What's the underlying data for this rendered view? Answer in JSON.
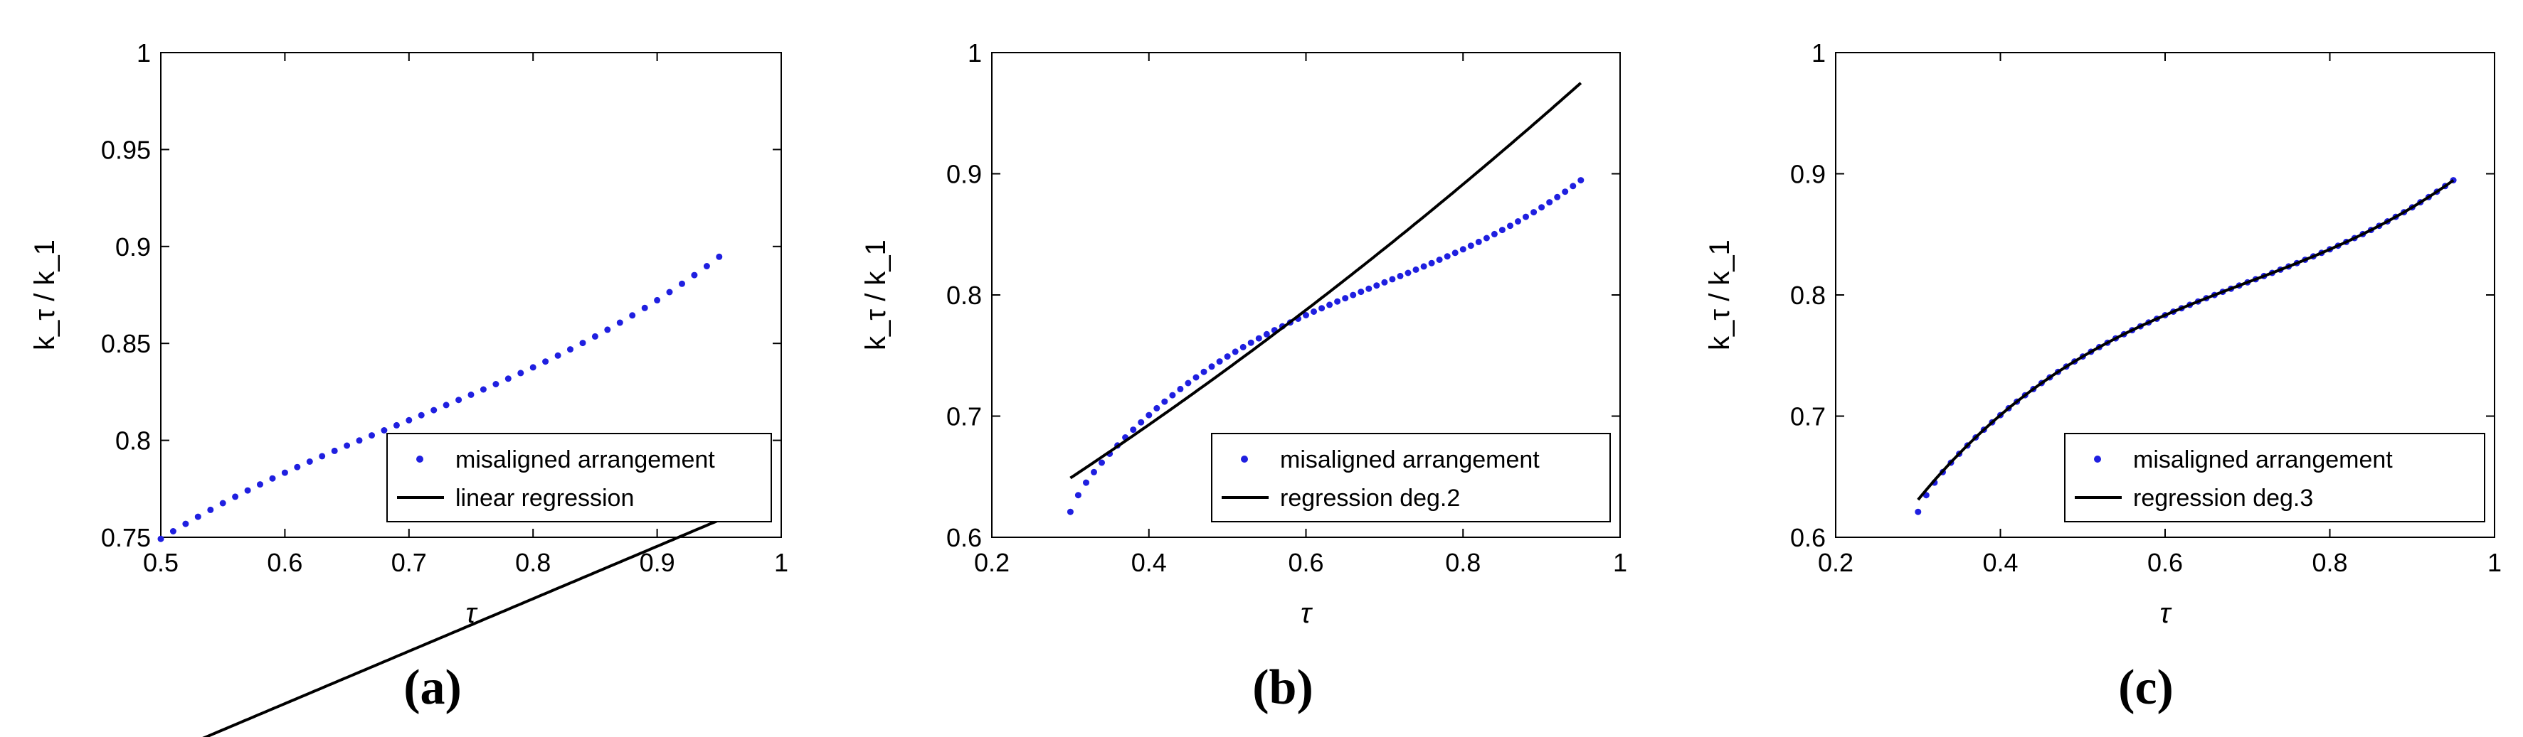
{
  "panel_labels": [
    "(a)",
    "(b)",
    "(c)"
  ],
  "chart_data": [
    {
      "type": "scatter",
      "panel": "(a)",
      "xlabel": "τ",
      "ylabel": "k_τ / k_1",
      "xlim": [
        0.5,
        1
      ],
      "ylim": [
        0.75,
        1
      ],
      "xticks": [
        "0.5",
        "0.6",
        "0.7",
        "0.8",
        "0.9",
        "1"
      ],
      "yticks": [
        "0.75",
        "0.8",
        "0.85",
        "0.9",
        "0.95",
        "1"
      ],
      "legend_position": "bottom-right",
      "series": [
        {
          "name": "misaligned arrangement",
          "kind": "points",
          "color": "#1f1fe0",
          "x_range": [
            0.5,
            0.95
          ],
          "count": 46,
          "fn": "misaligned"
        },
        {
          "name": "linear regression",
          "kind": "line",
          "color": "#000000",
          "coefficients": [
            0.2705,
            0.5019
          ],
          "x_range": [
            0.5,
            0.95
          ]
        }
      ]
    },
    {
      "type": "scatter",
      "panel": "(b)",
      "xlabel": "τ",
      "ylabel": "k_τ / k_1",
      "xlim": [
        0.2,
        1
      ],
      "ylim": [
        0.6,
        1
      ],
      "xticks": [
        "0.2",
        "0.4",
        "0.6",
        "0.8",
        "1"
      ],
      "yticks": [
        "0.6",
        "0.7",
        "0.8",
        "0.9",
        "1"
      ],
      "legend_position": "bottom-right",
      "series": [
        {
          "name": "misaligned arrangement",
          "kind": "points",
          "color": "#1f1fe0",
          "x_range": [
            0.3,
            0.95
          ],
          "count": 66,
          "fn": "misaligned"
        },
        {
          "name": "regression deg.2",
          "kind": "line",
          "color": "#000000",
          "coefficients": [
            0.1126,
            0.3609,
            0.5305
          ],
          "x_range": [
            0.3,
            0.95
          ]
        }
      ]
    },
    {
      "type": "scatter",
      "panel": "(c)",
      "xlabel": "τ",
      "ylabel": "k_τ / k_1",
      "xlim": [
        0.2,
        1
      ],
      "ylim": [
        0.6,
        1
      ],
      "xticks": [
        "0.2",
        "0.4",
        "0.6",
        "0.8",
        "1"
      ],
      "yticks": [
        "0.6",
        "0.7",
        "0.8",
        "0.9",
        "1"
      ],
      "legend_position": "bottom-right",
      "series": [
        {
          "name": "misaligned arrangement",
          "kind": "points",
          "color": "#1f1fe0",
          "x_range": [
            0.3,
            0.95
          ],
          "count": 66,
          "fn": "misaligned"
        },
        {
          "name": "regression deg.3",
          "kind": "line",
          "color": "#000000",
          "coefficients": [
            1.2038,
            -2.5187,
            2.0162,
            0.2203
          ],
          "x_range": [
            0.3,
            0.95
          ]
        }
      ]
    }
  ]
}
